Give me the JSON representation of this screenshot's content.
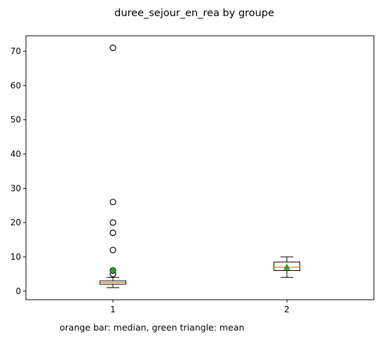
{
  "chart_data": {
    "type": "boxplot",
    "title": "duree_sejour_en_rea by groupe",
    "xlabel": "",
    "ylabel": "",
    "categories": [
      "1",
      "2"
    ],
    "ylim": [
      -2.5,
      74.5
    ],
    "yticks": [
      0,
      10,
      20,
      30,
      40,
      50,
      60,
      70
    ],
    "grid": false,
    "boxes": [
      {
        "category": "1",
        "whisker_low": 1,
        "q1": 2,
        "median": 2.5,
        "q3": 3,
        "whisker_high": 4,
        "mean": 6.2,
        "outliers": [
          5,
          6,
          12,
          17,
          20,
          26,
          71
        ]
      },
      {
        "category": "2",
        "whisker_low": 4,
        "q1": 6,
        "median": 7,
        "q3": 8.5,
        "whisker_high": 10,
        "mean": 7,
        "outliers": []
      }
    ],
    "caption": "orange bar: median, green triangle: mean",
    "colors": {
      "median": "#ff7f0e",
      "mean": "#2ca02c",
      "box": "#000000",
      "outlier": "#000000"
    }
  }
}
